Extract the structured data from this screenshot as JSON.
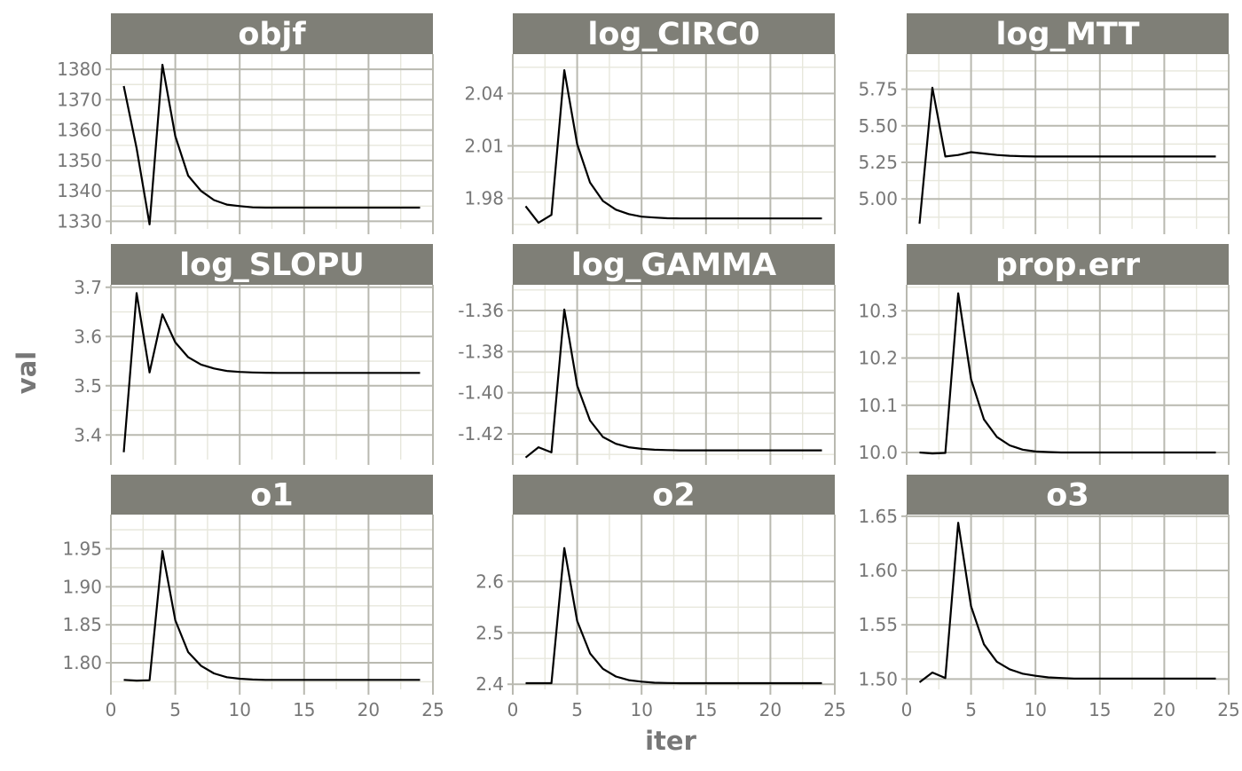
{
  "chart_data": {
    "type": "line",
    "layout": "facet-grid 3x3",
    "xlabel": "iter",
    "ylabel": "val",
    "x": [
      1,
      2,
      3,
      4,
      5,
      6,
      7,
      8,
      9,
      10,
      11,
      12,
      13,
      14,
      15,
      16,
      17,
      18,
      19,
      20,
      21,
      22,
      23,
      24
    ],
    "xlim": [
      0,
      25
    ],
    "xticks": [
      0,
      5,
      10,
      15,
      20,
      25
    ],
    "grid": true,
    "colors": {
      "strip_bg": "#7f7f77",
      "strip_text": "#ffffff",
      "major_grid": "#b9b9b0",
      "minor_grid": "#e7e7dc",
      "line": "#000000",
      "tick_text": "#777777"
    },
    "panels": [
      {
        "title": "objf",
        "ylim": [
          1327.5,
          1385
        ],
        "yticks": [
          1330,
          1340,
          1350,
          1360,
          1370,
          1380
        ],
        "tick_labels": [
          "1330",
          "1340",
          "1350",
          "1360",
          "1370",
          "1380"
        ],
        "values": [
          1374.5,
          1354,
          1329,
          1381.5,
          1358,
          1345,
          1340,
          1337,
          1335.5,
          1335,
          1334.6,
          1334.5,
          1334.5,
          1334.5,
          1334.5,
          1334.5,
          1334.5,
          1334.5,
          1334.5,
          1334.5,
          1334.5,
          1334.5,
          1334.5,
          1334.5
        ]
      },
      {
        "title": "log_CIRC0",
        "ylim": [
          1.9625,
          2.0625
        ],
        "yticks": [
          1.98,
          2.01,
          2.04
        ],
        "tick_labels": [
          "1.98",
          "2.01",
          "2.04"
        ],
        "values": [
          1.9755,
          1.966,
          1.9705,
          2.0533,
          2.011,
          1.989,
          1.9785,
          1.9735,
          1.971,
          1.9695,
          1.969,
          1.9686,
          1.9685,
          1.9685,
          1.9685,
          1.9685,
          1.9685,
          1.9685,
          1.9685,
          1.9685,
          1.9685,
          1.9685,
          1.9685,
          1.9685
        ]
      },
      {
        "title": "log_MTT",
        "ylim": [
          4.795,
          5.99
        ],
        "yticks": [
          5.0,
          5.25,
          5.5,
          5.75
        ],
        "tick_labels": [
          "5.00",
          "5.25",
          "5.50",
          "5.75"
        ],
        "values": [
          4.83,
          5.76,
          5.29,
          5.3,
          5.32,
          5.31,
          5.3,
          5.295,
          5.292,
          5.29,
          5.29,
          5.29,
          5.29,
          5.29,
          5.29,
          5.29,
          5.29,
          5.29,
          5.29,
          5.29,
          5.29,
          5.29,
          5.29,
          5.29
        ]
      },
      {
        "title": "log_SLOPU",
        "ylim": [
          3.35,
          3.705
        ],
        "yticks": [
          3.4,
          3.5,
          3.6,
          3.7
        ],
        "tick_labels": [
          "3.4",
          "3.5",
          "3.6",
          "3.7"
        ],
        "values": [
          3.365,
          3.688,
          3.527,
          3.645,
          3.588,
          3.558,
          3.543,
          3.535,
          3.53,
          3.528,
          3.527,
          3.5265,
          3.526,
          3.526,
          3.526,
          3.526,
          3.526,
          3.526,
          3.526,
          3.526,
          3.526,
          3.526,
          3.526,
          3.526
        ]
      },
      {
        "title": "log_GAMMA",
        "ylim": [
          -1.4325,
          -1.3475
        ],
        "yticks": [
          -1.42,
          -1.4,
          -1.38,
          -1.36
        ],
        "tick_labels": [
          "-1.42",
          "-1.40",
          "-1.38",
          "-1.36"
        ],
        "values": [
          -1.4315,
          -1.4265,
          -1.429,
          -1.3595,
          -1.3965,
          -1.4135,
          -1.4215,
          -1.4248,
          -1.4265,
          -1.4273,
          -1.4277,
          -1.4279,
          -1.428,
          -1.428,
          -1.428,
          -1.428,
          -1.428,
          -1.428,
          -1.428,
          -1.428,
          -1.428,
          -1.428,
          -1.428,
          -1.428
        ]
      },
      {
        "title": "prop.err",
        "ylim": [
          9.985,
          10.355
        ],
        "yticks": [
          10.0,
          10.1,
          10.2,
          10.3
        ],
        "tick_labels": [
          "10.0",
          "10.1",
          "10.2",
          "10.3"
        ],
        "values": [
          10.0,
          9.998,
          9.999,
          10.337,
          10.155,
          10.07,
          10.033,
          10.015,
          10.006,
          10.002,
          10.001,
          10.0,
          10.0,
          10.0,
          10.0,
          10.0,
          10.0,
          10.0,
          10.0,
          10.0,
          10.0,
          10.0,
          10.0,
          10.0
        ]
      },
      {
        "title": "o1",
        "ylim": [
          1.765,
          1.995
        ],
        "yticks": [
          1.8,
          1.85,
          1.9,
          1.95
        ],
        "tick_labels": [
          "1.80",
          "1.85",
          "1.90",
          "1.95"
        ],
        "values": [
          1.7775,
          1.7765,
          1.777,
          1.947,
          1.856,
          1.814,
          1.796,
          1.786,
          1.781,
          1.779,
          1.778,
          1.7775,
          1.7775,
          1.7775,
          1.7775,
          1.7775,
          1.7775,
          1.7775,
          1.7775,
          1.7775,
          1.7775,
          1.7775,
          1.7775,
          1.7775
        ]
      },
      {
        "title": "o2",
        "ylim": [
          2.39,
          2.73
        ],
        "yticks": [
          2.4,
          2.5,
          2.6
        ],
        "tick_labels": [
          "2.4",
          "2.5",
          "2.6"
        ],
        "values": [
          2.402,
          2.402,
          2.402,
          2.665,
          2.523,
          2.46,
          2.43,
          2.415,
          2.408,
          2.405,
          2.403,
          2.4025,
          2.402,
          2.402,
          2.402,
          2.402,
          2.402,
          2.402,
          2.402,
          2.402,
          2.402,
          2.402,
          2.402,
          2.402
        ]
      },
      {
        "title": "o3",
        "ylim": [
          1.4905,
          1.6515
        ],
        "yticks": [
          1.5,
          1.55,
          1.6,
          1.65
        ],
        "tick_labels": [
          "1.50",
          "1.55",
          "1.60",
          "1.65"
        ],
        "values": [
          1.497,
          1.506,
          1.501,
          1.644,
          1.567,
          1.532,
          1.516,
          1.509,
          1.505,
          1.503,
          1.5015,
          1.501,
          1.5005,
          1.5005,
          1.5005,
          1.5005,
          1.5005,
          1.5005,
          1.5005,
          1.5005,
          1.5005,
          1.5005,
          1.5005,
          1.5005
        ]
      }
    ]
  }
}
